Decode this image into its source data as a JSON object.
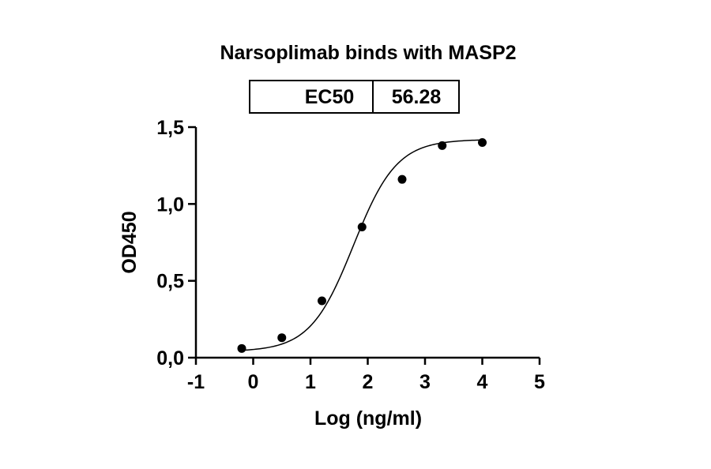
{
  "chart_data": {
    "type": "scatter",
    "title": "Narsoplimab binds with MASP2",
    "xlabel": "Log (ng/ml)",
    "ylabel": "OD450",
    "xlim": [
      -1,
      5
    ],
    "ylim": [
      0,
      1.5
    ],
    "x_ticks": [
      -1,
      0,
      1,
      2,
      3,
      4,
      5
    ],
    "x_tick_labels": [
      "-1",
      "0",
      "1",
      "2",
      "3",
      "4",
      "5"
    ],
    "y_ticks": [
      0,
      0.5,
      1.0,
      1.5
    ],
    "y_tick_labels": [
      "0,0",
      "0,5",
      "1,0",
      "1,5"
    ],
    "grid": false,
    "series": [
      {
        "x": [
          -0.2,
          0.5,
          1.2,
          1.9,
          2.6,
          3.3,
          4.0
        ],
        "y": [
          0.06,
          0.13,
          0.37,
          0.85,
          1.16,
          1.38,
          1.4
        ]
      }
    ],
    "fit": {
      "model": "four-parameter logistic",
      "bottom": 0.04,
      "top": 1.42,
      "log_ec50": 1.75,
      "hill": 1.15
    },
    "annotation_table": {
      "label": "EC50",
      "value": "56.28"
    }
  }
}
